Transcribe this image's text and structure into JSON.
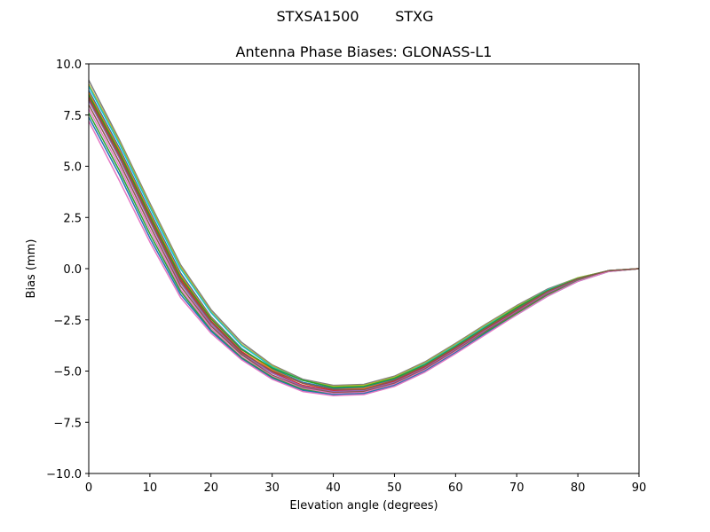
{
  "chart_data": {
    "type": "line",
    "suptitle": "STXSA1500        STXG",
    "title": "Antenna Phase Biases: GLONASS-L1",
    "xlabel": "Elevation angle (degrees)",
    "ylabel": "Bias (mm)",
    "xlim": [
      0,
      90
    ],
    "ylim": [
      -10,
      10
    ],
    "x_ticks": [
      0,
      10,
      20,
      30,
      40,
      50,
      60,
      70,
      80,
      90
    ],
    "x_tick_labels": [
      "0",
      "10",
      "20",
      "30",
      "40",
      "50",
      "60",
      "70",
      "80",
      "90"
    ],
    "y_ticks": [
      10,
      7.5,
      5,
      2.5,
      0,
      -2.5,
      -5,
      -7.5,
      -10
    ],
    "y_tick_labels": [
      "10.0",
      "7.5",
      "5.0",
      "2.5",
      "0.0",
      "−2.5",
      "−5.0",
      "−7.5",
      "−10.0"
    ],
    "grid": false,
    "legend": "none",
    "x": [
      0,
      5,
      10,
      15,
      20,
      25,
      30,
      35,
      40,
      45,
      50,
      55,
      60,
      65,
      70,
      75,
      80,
      85,
      90
    ],
    "series": [
      {
        "color": "#7f7f7f",
        "values": [
          9.2,
          6.3,
          3.2,
          0.2,
          -2.0,
          -3.6,
          -4.7,
          -5.4,
          -5.7,
          -5.65,
          -5.25,
          -4.55,
          -3.65,
          -2.7,
          -1.8,
          -1.0,
          -0.45,
          -0.1,
          0.0
        ]
      },
      {
        "color": "#bcbd22",
        "values": [
          9.0,
          6.2,
          3.1,
          0.1,
          -2.1,
          -3.7,
          -4.75,
          -5.45,
          -5.75,
          -5.7,
          -5.3,
          -4.6,
          -3.7,
          -2.75,
          -1.85,
          -1.05,
          -0.45,
          -0.1,
          0.0
        ]
      },
      {
        "color": "#17becf",
        "values": [
          8.9,
          6.1,
          3.0,
          0.0,
          -2.15,
          -3.75,
          -4.8,
          -5.45,
          -5.8,
          -5.75,
          -5.35,
          -4.65,
          -3.75,
          -2.8,
          -1.9,
          -1.05,
          -0.48,
          -0.1,
          0.0
        ]
      },
      {
        "color": "#1f77b4",
        "values": [
          8.7,
          5.9,
          2.8,
          -0.2,
          -2.35,
          -3.9,
          -4.9,
          -5.55,
          -5.85,
          -5.8,
          -5.4,
          -4.7,
          -3.8,
          -2.85,
          -1.95,
          -1.1,
          -0.5,
          -0.1,
          0.0
        ]
      },
      {
        "color": "#ff7f0e",
        "values": [
          8.6,
          5.8,
          2.7,
          -0.3,
          -2.4,
          -3.95,
          -4.95,
          -5.6,
          -5.9,
          -5.85,
          -5.45,
          -4.75,
          -3.85,
          -2.9,
          -2.0,
          -1.15,
          -0.52,
          -0.12,
          0.0
        ]
      },
      {
        "color": "#d62728",
        "values": [
          8.4,
          5.6,
          2.5,
          -0.5,
          -2.55,
          -4.05,
          -5.05,
          -5.7,
          -5.95,
          -5.9,
          -5.5,
          -4.8,
          -3.9,
          -2.95,
          -2.05,
          -1.2,
          -0.55,
          -0.12,
          0.0
        ]
      },
      {
        "color": "#9467bd",
        "values": [
          8.2,
          5.4,
          2.3,
          -0.7,
          -2.7,
          -4.15,
          -5.1,
          -5.75,
          -6.0,
          -5.95,
          -5.55,
          -4.85,
          -3.95,
          -3.0,
          -2.1,
          -1.2,
          -0.55,
          -0.12,
          0.0
        ]
      },
      {
        "color": "#8c564b",
        "values": [
          8.0,
          5.2,
          2.1,
          -0.85,
          -2.8,
          -4.2,
          -5.2,
          -5.8,
          -6.05,
          -6.0,
          -5.6,
          -4.9,
          -4.0,
          -3.05,
          -2.15,
          -1.25,
          -0.58,
          -0.13,
          0.0
        ]
      },
      {
        "color": "#e377c2",
        "values": [
          7.8,
          5.0,
          1.9,
          -1.0,
          -2.9,
          -4.3,
          -5.25,
          -5.85,
          -6.1,
          -6.05,
          -5.65,
          -4.95,
          -4.05,
          -3.1,
          -2.2,
          -1.3,
          -0.6,
          -0.13,
          0.0
        ]
      },
      {
        "color": "#2ca02c",
        "values": [
          7.6,
          4.8,
          1.7,
          -1.1,
          -3.0,
          -4.35,
          -5.3,
          -5.9,
          -6.15,
          -6.1,
          -5.7,
          -5.0,
          -4.1,
          -3.1,
          -2.2,
          -1.3,
          -0.6,
          -0.13,
          0.0
        ]
      },
      {
        "color": "#1f77b4",
        "values": [
          7.4,
          4.6,
          1.5,
          -1.25,
          -3.05,
          -4.4,
          -5.35,
          -5.95,
          -6.15,
          -6.1,
          -5.7,
          -5.0,
          -4.1,
          -3.15,
          -2.25,
          -1.35,
          -0.62,
          -0.14,
          0.0
        ]
      },
      {
        "color": "#e377c2",
        "values": [
          7.2,
          4.3,
          1.3,
          -1.4,
          -3.15,
          -4.45,
          -5.4,
          -6.0,
          -6.2,
          -6.15,
          -5.75,
          -5.05,
          -4.15,
          -3.2,
          -2.25,
          -1.35,
          -0.62,
          -0.14,
          0.0
        ]
      },
      {
        "color": "#2ca02c",
        "values": [
          8.5,
          5.7,
          2.6,
          -0.4,
          -2.45,
          -3.95,
          -4.85,
          -5.45,
          -5.8,
          -5.75,
          -5.35,
          -4.7,
          -3.8,
          -2.85,
          -1.9,
          -1.08,
          -0.48,
          -0.1,
          0.0
        ]
      },
      {
        "color": "#8c564b",
        "values": [
          8.3,
          5.5,
          2.4,
          -0.6,
          -2.6,
          -4.1,
          -5.0,
          -5.6,
          -5.9,
          -5.9,
          -5.45,
          -4.75,
          -3.85,
          -2.9,
          -2.0,
          -1.12,
          -0.5,
          -0.1,
          0.0
        ]
      }
    ]
  }
}
